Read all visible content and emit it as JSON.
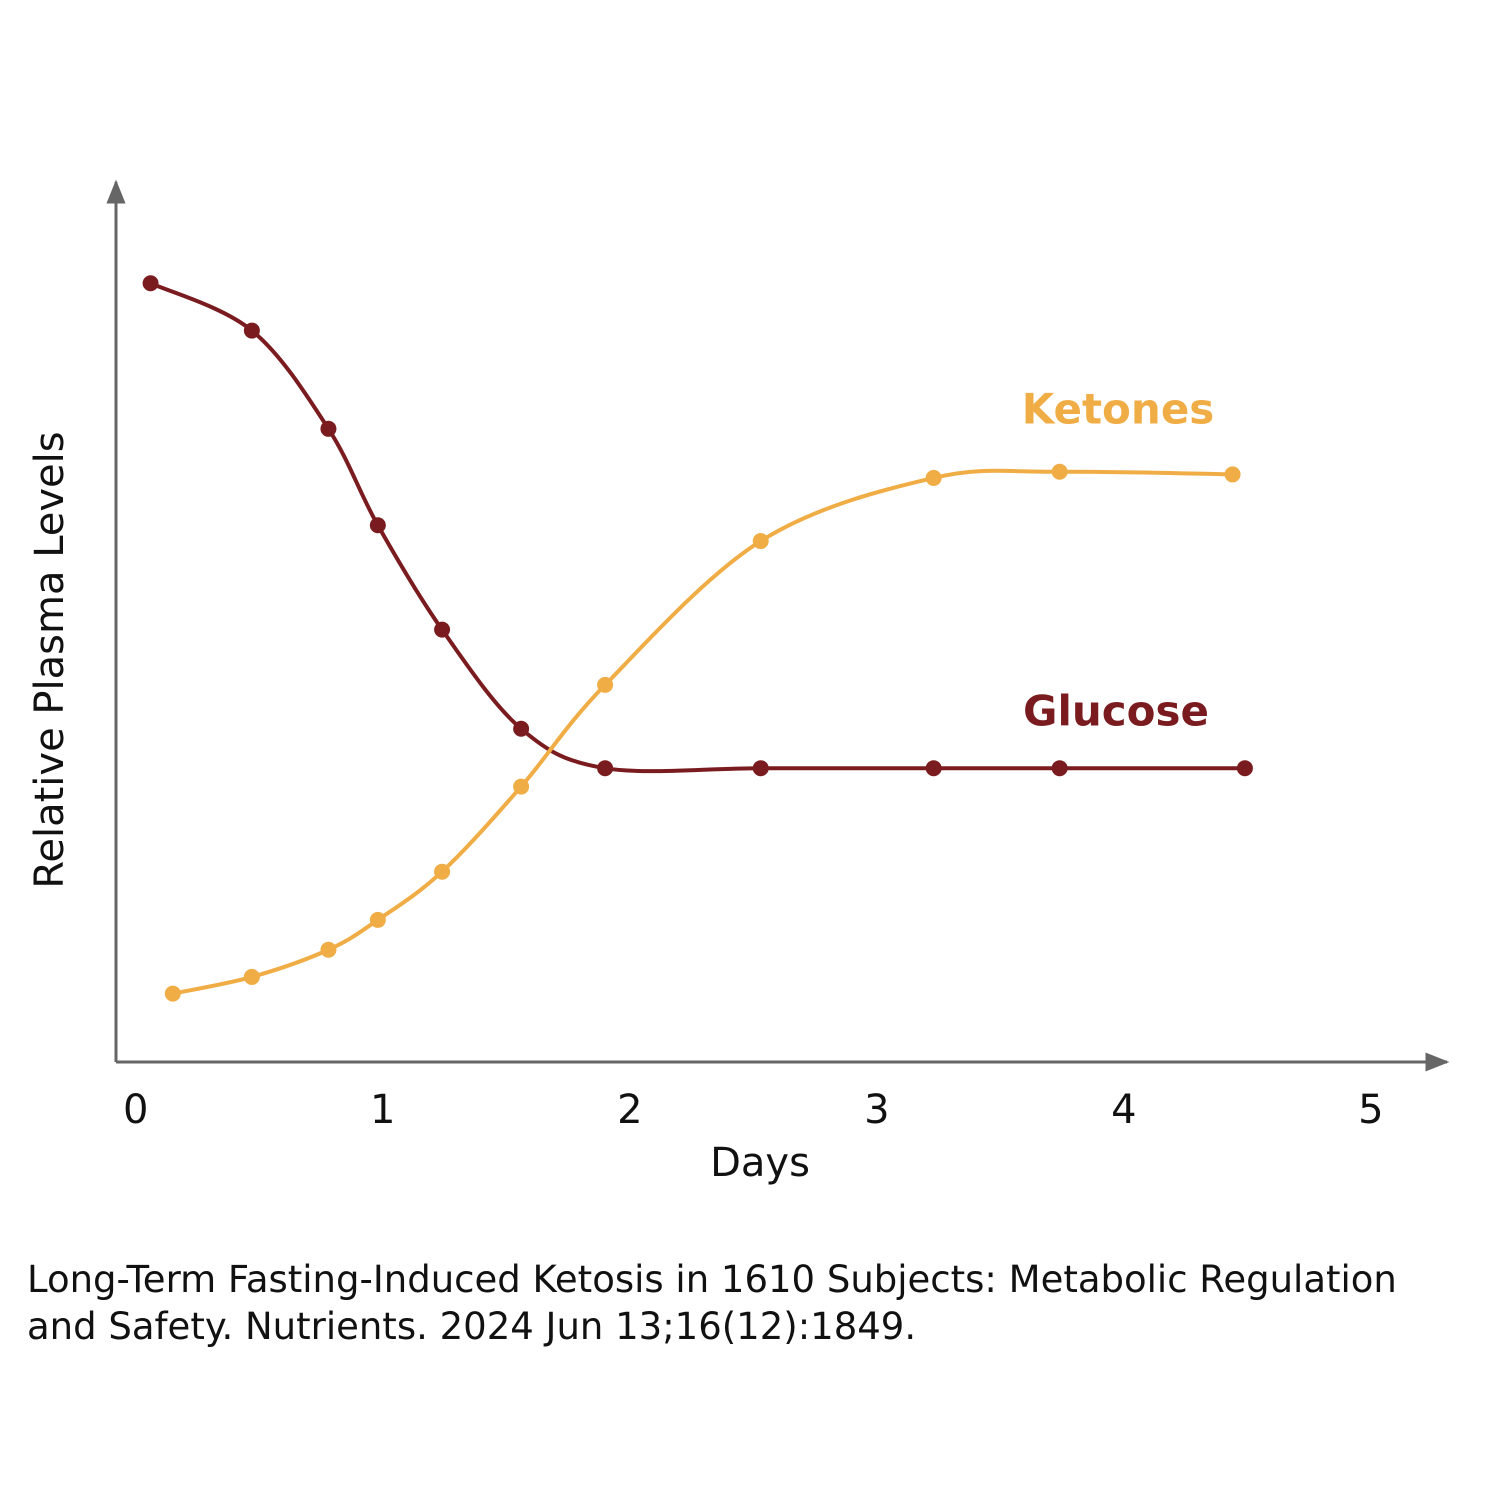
{
  "chart_data": {
    "type": "line",
    "xlabel": "Days",
    "ylabel": "Relative Plasma Levels",
    "xlim": [
      -0.08,
      5.3
    ],
    "xticks": [
      0,
      1,
      2,
      3,
      4,
      5
    ],
    "ylim": [
      0,
      100
    ],
    "series": [
      {
        "name": "Glucose",
        "color": "#7a1c1f",
        "x": [
          0.06,
          0.47,
          0.78,
          0.98,
          1.24,
          1.56,
          1.9,
          2.53,
          3.23,
          3.74,
          4.49
        ],
        "values": [
          88.8,
          83.4,
          72.2,
          61.2,
          49.3,
          38.0,
          33.5,
          33.5,
          33.5,
          33.5,
          33.5
        ]
      },
      {
        "name": "Ketones",
        "color": "#f0ad45",
        "x": [
          0.15,
          0.47,
          0.78,
          0.98,
          1.24,
          1.56,
          1.9,
          2.53,
          3.23,
          3.74,
          4.44
        ],
        "values": [
          7.8,
          9.7,
          12.8,
          16.2,
          21.7,
          31.4,
          43.0,
          59.4,
          66.6,
          67.3,
          67.0
        ]
      }
    ],
    "source": [
      "Long-Term Fasting-Induced Ketosis in 1610 Subjects: Metabolic Regulation",
      "and Safety. Nutrients. 2024 Jun 13;16(12):1849."
    ]
  }
}
